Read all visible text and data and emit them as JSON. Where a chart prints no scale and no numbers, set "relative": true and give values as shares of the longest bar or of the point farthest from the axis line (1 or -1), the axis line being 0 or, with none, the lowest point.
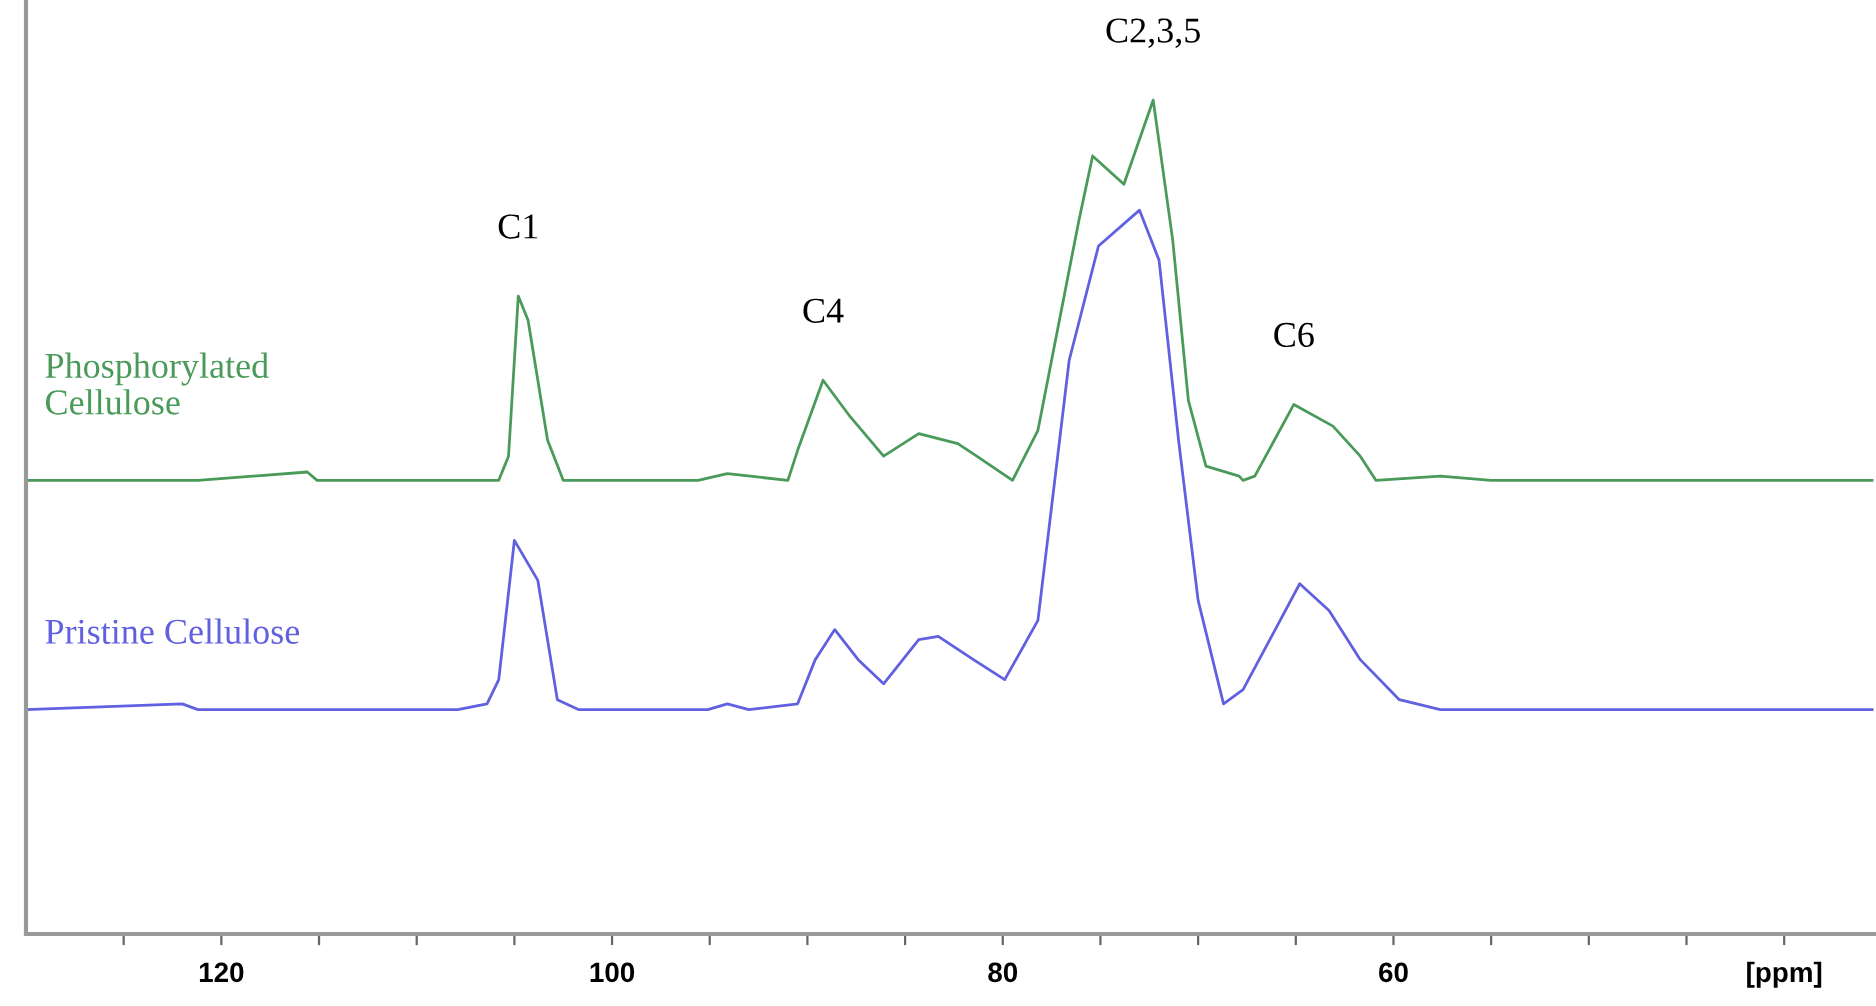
{
  "chart_data": {
    "type": "line",
    "relative": true,
    "grid": false,
    "marker": "none",
    "line_style": "solid",
    "xlim": [
      130,
      35.3
    ],
    "xticks": [
      {
        "value": 125,
        "label": null
      },
      120,
      {
        "value": 115,
        "label": null
      },
      {
        "value": 110,
        "label": null
      },
      {
        "value": 105,
        "label": null
      },
      100,
      {
        "value": 95,
        "label": null
      },
      {
        "value": 90,
        "label": null
      },
      {
        "value": 85,
        "label": null
      },
      80,
      {
        "value": 75,
        "label": null
      },
      {
        "value": 70,
        "label": null
      },
      {
        "value": 65,
        "label": null
      },
      60,
      {
        "value": 55,
        "label": null
      },
      {
        "value": 50,
        "label": null
      },
      {
        "value": 45,
        "label": null
      },
      {
        "value": 40,
        "label": "[ppm]"
      }
    ],
    "series": [
      {
        "name": "Phosphorylated\nCellulose",
        "color": "#4a9a5a",
        "x": [
          130,
          121.2,
          115.6,
          115.1,
          107.9,
          105.8,
          105.3,
          104.8,
          104.3,
          103.3,
          102.5,
          95.6,
          94.1,
          91.0,
          90.5,
          89.2,
          87.8,
          86.1,
          84.3,
          82.3,
          81.2,
          79.5,
          78.2,
          76.1,
          75.4,
          73.8,
          72.3,
          71.3,
          70.5,
          69.6,
          67.9,
          67.7,
          67.1,
          65.1,
          63.1,
          61.7,
          60.9,
          57.6,
          55,
          35.5
        ],
        "values": [
          0.544,
          0.544,
          0.554,
          0.544,
          0.544,
          0.544,
          0.573,
          0.765,
          0.736,
          0.592,
          0.544,
          0.544,
          0.552,
          0.544,
          0.58,
          0.664,
          0.62,
          0.573,
          0.6,
          0.588,
          0.571,
          0.544,
          0.604,
          0.856,
          0.933,
          0.899,
          1.0,
          0.832,
          0.64,
          0.561,
          0.549,
          0.544,
          0.549,
          0.635,
          0.609,
          0.573,
          0.544,
          0.549,
          0.544,
          0.544
        ]
      },
      {
        "name": "Pristine Cellulose",
        "color": "#6060e0",
        "x": [
          130,
          122,
          121.2,
          107.9,
          106.4,
          105.8,
          105.0,
          103.8,
          102.8,
          101.7,
          95.1,
          94.1,
          93.0,
          90.5,
          89.6,
          88.6,
          87.4,
          86.1,
          84.3,
          83.3,
          81.5,
          79.9,
          78.2,
          76.6,
          75.1,
          73.0,
          72.0,
          71.0,
          70.0,
          68.7,
          67.7,
          65.8,
          64.8,
          63.3,
          61.7,
          59.7,
          57.6,
          35.5
        ],
        "values": [
          0.269,
          0.276,
          0.269,
          0.269,
          0.276,
          0.305,
          0.472,
          0.424,
          0.281,
          0.269,
          0.269,
          0.276,
          0.269,
          0.276,
          0.329,
          0.365,
          0.329,
          0.3,
          0.353,
          0.357,
          0.329,
          0.305,
          0.376,
          0.688,
          0.825,
          0.868,
          0.808,
          0.592,
          0.4,
          0.276,
          0.293,
          0.376,
          0.42,
          0.388,
          0.329,
          0.281,
          0.269,
          0.269
        ]
      }
    ],
    "annotations": [
      "C1",
      "C4",
      "C2,3,5",
      "C6"
    ]
  }
}
